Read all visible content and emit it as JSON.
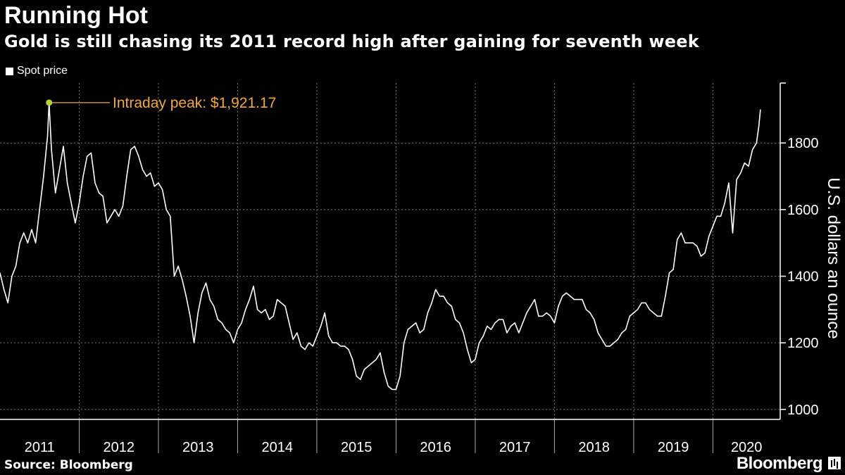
{
  "header": {
    "title": "Running Hot",
    "subtitle": "Gold is still chasing its 2011 record high after gaining for seventh week"
  },
  "legend": {
    "label": "Spot price"
  },
  "footer": {
    "source": "Source: Bloomberg",
    "brand": "Bloomberg"
  },
  "colors": {
    "background": "#000000",
    "line": "#ffffff",
    "annotation": "#f2a93b",
    "peak_marker": "#b5d334",
    "grid": "#7a7a7a"
  },
  "chart_data": {
    "type": "line",
    "title": "Running Hot",
    "ylabel": "U.S. dollars an ounce",
    "ylim": [
      970,
      1980
    ],
    "yticks": [
      1000,
      1200,
      1400,
      1600,
      1800
    ],
    "xlim": [
      2011.0,
      2020.85
    ],
    "xtick_labels": [
      "2011",
      "2012",
      "2013",
      "2014",
      "2015",
      "2016",
      "2017",
      "2018",
      "2019",
      "2020"
    ],
    "grid": true,
    "legend_position": "top-left",
    "annotation": {
      "text": "Intraday peak: $1,921.17",
      "x": 2011.62,
      "y": 1921.17
    },
    "series": [
      {
        "name": "Spot price",
        "x": [
          2011.0,
          2011.05,
          2011.1,
          2011.15,
          2011.2,
          2011.25,
          2011.3,
          2011.35,
          2011.4,
          2011.45,
          2011.5,
          2011.55,
          2011.6,
          2011.62,
          2011.65,
          2011.7,
          2011.75,
          2011.8,
          2011.85,
          2011.9,
          2011.95,
          2012.0,
          2012.05,
          2012.1,
          2012.15,
          2012.2,
          2012.25,
          2012.3,
          2012.35,
          2012.4,
          2012.45,
          2012.5,
          2012.55,
          2012.6,
          2012.65,
          2012.7,
          2012.75,
          2012.8,
          2012.85,
          2012.9,
          2012.95,
          2013.0,
          2013.05,
          2013.1,
          2013.15,
          2013.2,
          2013.25,
          2013.3,
          2013.35,
          2013.4,
          2013.45,
          2013.5,
          2013.55,
          2013.6,
          2013.65,
          2013.7,
          2013.75,
          2013.8,
          2013.85,
          2013.9,
          2013.95,
          2014.0,
          2014.05,
          2014.1,
          2014.15,
          2014.2,
          2014.25,
          2014.3,
          2014.35,
          2014.4,
          2014.45,
          2014.5,
          2014.55,
          2014.6,
          2014.65,
          2014.7,
          2014.75,
          2014.8,
          2014.85,
          2014.9,
          2014.95,
          2015.0,
          2015.05,
          2015.1,
          2015.15,
          2015.2,
          2015.25,
          2015.3,
          2015.35,
          2015.4,
          2015.45,
          2015.5,
          2015.55,
          2015.6,
          2015.65,
          2015.7,
          2015.75,
          2015.8,
          2015.85,
          2015.9,
          2015.95,
          2016.0,
          2016.05,
          2016.1,
          2016.15,
          2016.2,
          2016.25,
          2016.3,
          2016.35,
          2016.4,
          2016.45,
          2016.5,
          2016.55,
          2016.6,
          2016.65,
          2016.7,
          2016.75,
          2016.8,
          2016.85,
          2016.9,
          2016.95,
          2017.0,
          2017.05,
          2017.1,
          2017.15,
          2017.2,
          2017.25,
          2017.3,
          2017.35,
          2017.4,
          2017.45,
          2017.5,
          2017.55,
          2017.6,
          2017.65,
          2017.7,
          2017.75,
          2017.8,
          2017.85,
          2017.9,
          2017.95,
          2018.0,
          2018.05,
          2018.1,
          2018.15,
          2018.2,
          2018.25,
          2018.3,
          2018.35,
          2018.4,
          2018.45,
          2018.5,
          2018.55,
          2018.6,
          2018.65,
          2018.7,
          2018.75,
          2018.8,
          2018.85,
          2018.9,
          2018.95,
          2019.0,
          2019.05,
          2019.1,
          2019.15,
          2019.2,
          2019.25,
          2019.3,
          2019.35,
          2019.4,
          2019.45,
          2019.5,
          2019.55,
          2019.6,
          2019.65,
          2019.7,
          2019.75,
          2019.8,
          2019.85,
          2019.9,
          2019.95,
          2020.0,
          2020.05,
          2020.1,
          2020.15,
          2020.2,
          2020.25,
          2020.3,
          2020.35,
          2020.4,
          2020.45,
          2020.5,
          2020.55,
          2020.58,
          2020.6
        ],
        "values": [
          1410,
          1360,
          1320,
          1400,
          1430,
          1500,
          1530,
          1500,
          1540,
          1500,
          1600,
          1700,
          1820,
          1921,
          1780,
          1650,
          1720,
          1790,
          1680,
          1620,
          1560,
          1620,
          1700,
          1760,
          1770,
          1680,
          1650,
          1640,
          1560,
          1580,
          1600,
          1580,
          1610,
          1700,
          1780,
          1790,
          1760,
          1720,
          1700,
          1710,
          1670,
          1680,
          1660,
          1600,
          1580,
          1400,
          1430,
          1390,
          1340,
          1280,
          1200,
          1290,
          1350,
          1380,
          1330,
          1310,
          1270,
          1260,
          1240,
          1230,
          1200,
          1240,
          1260,
          1300,
          1330,
          1370,
          1300,
          1290,
          1300,
          1270,
          1280,
          1330,
          1320,
          1310,
          1260,
          1210,
          1230,
          1190,
          1180,
          1200,
          1190,
          1220,
          1250,
          1290,
          1220,
          1200,
          1200,
          1190,
          1190,
          1180,
          1150,
          1100,
          1090,
          1120,
          1130,
          1140,
          1150,
          1170,
          1110,
          1070,
          1060,
          1060,
          1100,
          1200,
          1240,
          1250,
          1260,
          1230,
          1240,
          1290,
          1320,
          1360,
          1340,
          1340,
          1320,
          1310,
          1270,
          1260,
          1230,
          1180,
          1140,
          1150,
          1200,
          1220,
          1250,
          1240,
          1260,
          1270,
          1270,
          1230,
          1250,
          1260,
          1230,
          1260,
          1290,
          1310,
          1330,
          1280,
          1280,
          1290,
          1280,
          1260,
          1310,
          1340,
          1350,
          1340,
          1330,
          1330,
          1330,
          1300,
          1290,
          1270,
          1230,
          1210,
          1190,
          1190,
          1200,
          1210,
          1230,
          1240,
          1280,
          1290,
          1300,
          1320,
          1320,
          1300,
          1290,
          1280,
          1280,
          1340,
          1410,
          1420,
          1510,
          1530,
          1500,
          1500,
          1500,
          1490,
          1460,
          1470,
          1520,
          1550,
          1580,
          1580,
          1620,
          1680,
          1530,
          1690,
          1710,
          1740,
          1730,
          1780,
          1800,
          1850,
          1900
        ]
      }
    ]
  }
}
